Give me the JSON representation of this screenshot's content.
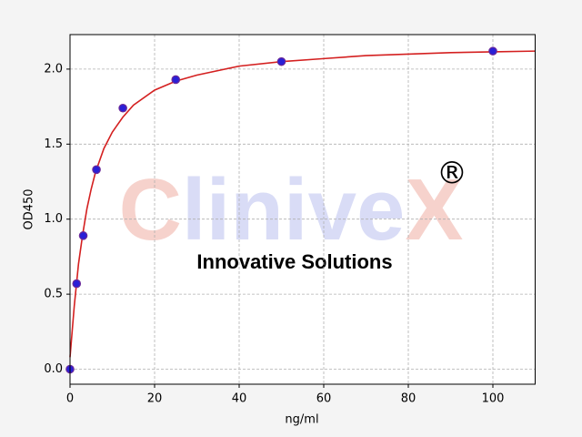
{
  "chart_data": {
    "type": "scatter",
    "xlabel": "ng/ml",
    "ylabel": "OD450",
    "xlim": [
      0,
      110
    ],
    "ylim": [
      -0.1,
      2.23
    ],
    "xticks": [
      0,
      20,
      40,
      60,
      80,
      100
    ],
    "yticks": [
      {
        "value": 0,
        "label": "0.0"
      },
      0.5,
      {
        "value": 1,
        "label": "1.0"
      },
      1.5,
      {
        "value": 2,
        "label": "2.0"
      }
    ],
    "grid": true,
    "series": [
      {
        "mode": "markers",
        "color": "#2a1fd6",
        "edgecolor": "#6a2a9a",
        "x": [
          0,
          1.5625,
          3.125,
          6.25,
          12.5,
          25,
          50,
          100
        ],
        "values": [
          0.0,
          0.57,
          0.89,
          1.33,
          1.74,
          1.93,
          2.05,
          2.12
        ]
      },
      {
        "mode": "line",
        "color": "#d42020",
        "x": [
          0,
          1,
          2,
          3,
          4,
          5,
          6,
          8,
          10,
          12.5,
          15,
          20,
          25,
          30,
          40,
          50,
          60,
          70,
          80,
          90,
          100,
          110
        ],
        "values": [
          0.08,
          0.42,
          0.7,
          0.9,
          1.07,
          1.2,
          1.31,
          1.47,
          1.58,
          1.68,
          1.76,
          1.86,
          1.92,
          1.96,
          2.02,
          2.05,
          2.07,
          2.09,
          2.1,
          2.11,
          2.115,
          2.12
        ]
      }
    ],
    "watermark": [
      {
        "text": "C",
        "color": "#f6d2cc"
      },
      {
        "text": "linive",
        "color": "#d9dcf6"
      },
      {
        "text": "X",
        "color": "#f6d2cc"
      },
      {
        "text": "®",
        "color": "#d9dcf6"
      },
      {
        "text": "Innovative Solutions",
        "color": "#f6d2cc"
      }
    ]
  }
}
